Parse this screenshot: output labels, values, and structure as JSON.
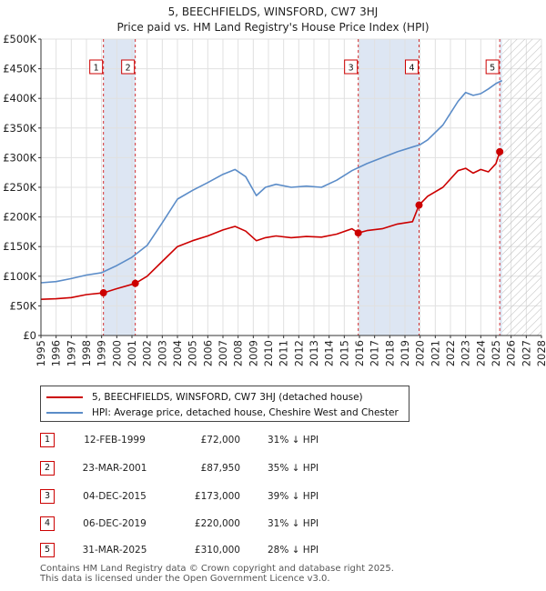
{
  "chart_data": {
    "type": "line",
    "title": "5, BEECHFIELDS, WINSFORD, CW7 3HJ",
    "subtitle": "Price paid vs. HM Land Registry's House Price Index (HPI)",
    "xlim": [
      1995,
      2028
    ],
    "ylim": [
      0,
      500000
    ],
    "x_ticks": [
      "1995",
      "1996",
      "1997",
      "1998",
      "1999",
      "2000",
      "2001",
      "2002",
      "2003",
      "2004",
      "2005",
      "2006",
      "2007",
      "2008",
      "2009",
      "2010",
      "2011",
      "2012",
      "2013",
      "2014",
      "2015",
      "2016",
      "2017",
      "2018",
      "2019",
      "2020",
      "2021",
      "2022",
      "2023",
      "2024",
      "2025",
      "2026",
      "2027",
      "2028"
    ],
    "y_ticks": [
      {
        "value": 0,
        "label": "£0"
      },
      {
        "value": 50000,
        "label": "£50K"
      },
      {
        "value": 100000,
        "label": "£100K"
      },
      {
        "value": 150000,
        "label": "£150K"
      },
      {
        "value": 200000,
        "label": "£200K"
      },
      {
        "value": 250000,
        "label": "£250K"
      },
      {
        "value": 300000,
        "label": "£300K"
      },
      {
        "value": 350000,
        "label": "£350K"
      },
      {
        "value": 400000,
        "label": "£400K"
      },
      {
        "value": 450000,
        "label": "£450K"
      },
      {
        "value": 500000,
        "label": "£500K"
      }
    ],
    "forecast_start": 2025.4,
    "series": [
      {
        "name": "5, BEECHFIELDS, WINSFORD, CW7 3HJ (detached house)",
        "color": "#cc0000",
        "points": [
          [
            1995.0,
            61000
          ],
          [
            1996.0,
            62000
          ],
          [
            1997.0,
            64000
          ],
          [
            1998.0,
            69000
          ],
          [
            1999.12,
            72000
          ],
          [
            2000.0,
            79000
          ],
          [
            2001.22,
            87950
          ],
          [
            2002.0,
            100000
          ],
          [
            2003.0,
            125000
          ],
          [
            2004.0,
            150000
          ],
          [
            2005.0,
            160000
          ],
          [
            2006.0,
            168000
          ],
          [
            2007.0,
            178000
          ],
          [
            2007.8,
            184000
          ],
          [
            2008.5,
            176000
          ],
          [
            2009.2,
            160000
          ],
          [
            2009.8,
            165000
          ],
          [
            2010.5,
            168000
          ],
          [
            2011.5,
            165000
          ],
          [
            2012.5,
            167000
          ],
          [
            2013.5,
            166000
          ],
          [
            2014.5,
            171000
          ],
          [
            2015.5,
            180000
          ],
          [
            2015.92,
            173000
          ],
          [
            2016.5,
            177000
          ],
          [
            2017.5,
            180000
          ],
          [
            2018.5,
            188000
          ],
          [
            2019.5,
            192000
          ],
          [
            2019.93,
            220000
          ],
          [
            2020.5,
            235000
          ],
          [
            2021.5,
            250000
          ],
          [
            2022.5,
            278000
          ],
          [
            2023.0,
            282000
          ],
          [
            2023.5,
            274000
          ],
          [
            2024.0,
            280000
          ],
          [
            2024.5,
            276000
          ],
          [
            2025.0,
            290000
          ],
          [
            2025.25,
            310000
          ],
          [
            2025.4,
            306000
          ]
        ]
      },
      {
        "name": "HPI: Average price, detached house, Cheshire West and Chester",
        "color": "#5b8cc8",
        "points": [
          [
            1995.0,
            89000
          ],
          [
            1996.0,
            91000
          ],
          [
            1997.0,
            96000
          ],
          [
            1998.0,
            102000
          ],
          [
            1999.0,
            106000
          ],
          [
            2000.0,
            118000
          ],
          [
            2001.0,
            132000
          ],
          [
            2002.0,
            152000
          ],
          [
            2003.0,
            190000
          ],
          [
            2004.0,
            230000
          ],
          [
            2005.0,
            245000
          ],
          [
            2006.0,
            258000
          ],
          [
            2007.0,
            272000
          ],
          [
            2007.8,
            280000
          ],
          [
            2008.5,
            268000
          ],
          [
            2009.2,
            236000
          ],
          [
            2009.8,
            250000
          ],
          [
            2010.5,
            255000
          ],
          [
            2011.5,
            250000
          ],
          [
            2012.5,
            252000
          ],
          [
            2013.5,
            250000
          ],
          [
            2014.5,
            262000
          ],
          [
            2015.5,
            278000
          ],
          [
            2016.5,
            290000
          ],
          [
            2017.5,
            300000
          ],
          [
            2018.5,
            310000
          ],
          [
            2019.5,
            318000
          ],
          [
            2020.0,
            322000
          ],
          [
            2020.5,
            330000
          ],
          [
            2021.5,
            355000
          ],
          [
            2022.5,
            395000
          ],
          [
            2023.0,
            410000
          ],
          [
            2023.5,
            405000
          ],
          [
            2024.0,
            408000
          ],
          [
            2024.5,
            416000
          ],
          [
            2025.0,
            425000
          ],
          [
            2025.4,
            430000
          ]
        ]
      }
    ],
    "sales": [
      {
        "num": "1",
        "date": "12-FEB-1999",
        "price": "£72,000",
        "hpi": "31% ↓ HPI",
        "x": 1999.12,
        "y": 72000
      },
      {
        "num": "2",
        "date": "23-MAR-2001",
        "price": "£87,950",
        "hpi": "35% ↓ HPI",
        "x": 2001.22,
        "y": 87950
      },
      {
        "num": "3",
        "date": "04-DEC-2015",
        "price": "£173,000",
        "hpi": "39% ↓ HPI",
        "x": 2015.92,
        "y": 173000
      },
      {
        "num": "4",
        "date": "06-DEC-2019",
        "price": "£220,000",
        "hpi": "31% ↓ HPI",
        "x": 2019.93,
        "y": 220000
      },
      {
        "num": "5",
        "date": "31-MAR-2025",
        "price": "£310,000",
        "hpi": "28% ↓ HPI",
        "x": 2025.25,
        "y": 310000
      }
    ]
  },
  "footer": {
    "line1": "Contains HM Land Registry data © Crown copyright and database right 2025.",
    "line2": "This data is licensed under the Open Government Licence v3.0."
  },
  "colors": {
    "price": "#cc0000",
    "hpi": "#5b8cc8",
    "band": "#dde6f3",
    "grid": "#e0e0e0"
  }
}
